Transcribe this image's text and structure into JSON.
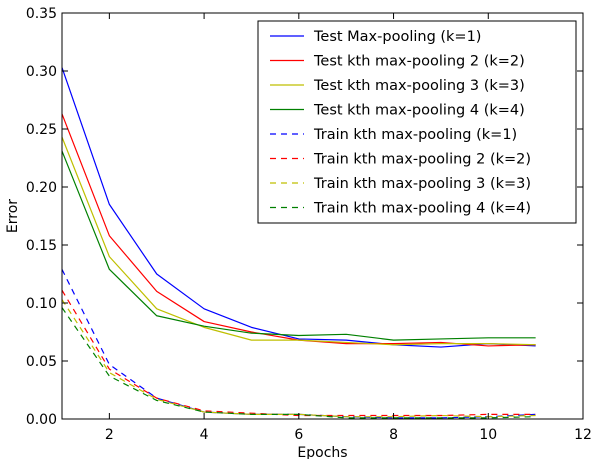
{
  "chart_data": {
    "type": "line",
    "title": "",
    "xlabel": "Epochs",
    "ylabel": "Error",
    "xlim": [
      1,
      12
    ],
    "ylim": [
      0,
      0.35
    ],
    "xticks": [
      2,
      4,
      6,
      8,
      10,
      12
    ],
    "yticks": [
      0.0,
      0.05,
      0.1,
      0.15,
      0.2,
      0.25,
      0.3,
      0.35
    ],
    "ytick_labels": [
      "0.00",
      "0.05",
      "0.10",
      "0.15",
      "0.20",
      "0.25",
      "0.30",
      "0.35"
    ],
    "grid": false,
    "legend_position": "top-right",
    "x": [
      1,
      2,
      3,
      4,
      5,
      6,
      7,
      8,
      9,
      10,
      11
    ],
    "series": [
      {
        "name": "Test Max-pooling (k=1)",
        "color": "#0000ff",
        "dash": "solid",
        "values": [
          0.303,
          0.185,
          0.125,
          0.095,
          0.079,
          0.069,
          0.068,
          0.064,
          0.062,
          0.065,
          0.063
        ]
      },
      {
        "name": "Test kth max-pooling 2 (k=2)",
        "color": "#ff0000",
        "dash": "solid",
        "values": [
          0.263,
          0.158,
          0.11,
          0.084,
          0.075,
          0.068,
          0.065,
          0.065,
          0.066,
          0.063,
          0.064
        ]
      },
      {
        "name": "Test kth max-pooling 3 (k=3)",
        "color": "#bfbf00",
        "dash": "solid",
        "values": [
          0.243,
          0.14,
          0.095,
          0.079,
          0.068,
          0.068,
          0.066,
          0.064,
          0.065,
          0.065,
          0.064
        ]
      },
      {
        "name": " Test kth max-pooling 4 (k=4)",
        "color": "#008000",
        "dash": "solid",
        "values": [
          0.231,
          0.129,
          0.089,
          0.08,
          0.074,
          0.072,
          0.073,
          0.068,
          0.069,
          0.07,
          0.07
        ]
      },
      {
        "name": "Train kth max-pooling (k=1)",
        "color": "#0000ff",
        "dash": "dashed",
        "values": [
          0.129,
          0.047,
          0.018,
          0.006,
          0.004,
          0.004,
          0.002,
          0.001,
          0.001,
          0.002,
          0.004
        ]
      },
      {
        "name": "Train kth max-pooling 2 (k=2)",
        "color": "#ff0000",
        "dash": "dashed",
        "values": [
          0.111,
          0.043,
          0.018,
          0.007,
          0.005,
          0.003,
          0.003,
          0.003,
          0.003,
          0.004,
          0.004
        ]
      },
      {
        "name": "Train kth max-pooling 3 (k=3)",
        "color": "#bfbf00",
        "dash": "dashed",
        "values": [
          0.103,
          0.04,
          0.017,
          0.006,
          0.004,
          0.004,
          0.002,
          0.002,
          0.003,
          0.002,
          0.003
        ]
      },
      {
        "name": " Train kth max-pooling 4 (k=4)",
        "color": "#008000",
        "dash": "dashed",
        "values": [
          0.096,
          0.037,
          0.016,
          0.006,
          0.004,
          0.004,
          0.001,
          0.001,
          0.001,
          0.001,
          0.002
        ]
      }
    ]
  }
}
